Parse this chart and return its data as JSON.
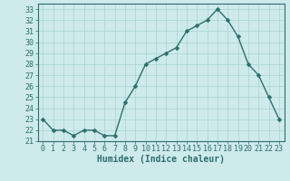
{
  "x": [
    0,
    1,
    2,
    3,
    4,
    5,
    6,
    7,
    8,
    9,
    10,
    11,
    12,
    13,
    14,
    15,
    16,
    17,
    18,
    19,
    20,
    21,
    22,
    23
  ],
  "y": [
    23,
    22,
    22,
    21.5,
    22,
    22,
    21.5,
    21.5,
    24.5,
    26,
    28,
    28.5,
    29,
    29.5,
    31,
    31.5,
    32,
    33,
    32,
    30.5,
    28,
    27,
    25,
    23
  ],
  "line_color": "#2d6e6e",
  "marker_color": "#2d6e6e",
  "bg_color": "#ceeaea",
  "grid_color": "#a8d4d4",
  "xlabel": "Humidex (Indice chaleur)",
  "ylim": [
    21,
    33.5
  ],
  "xlim": [
    -0.5,
    23.5
  ],
  "yticks": [
    21,
    22,
    23,
    24,
    25,
    26,
    27,
    28,
    29,
    30,
    31,
    32,
    33
  ],
  "xtick_labels": [
    "0",
    "1",
    "2",
    "3",
    "4",
    "5",
    "6",
    "7",
    "8",
    "9",
    "10",
    "11",
    "12",
    "13",
    "14",
    "15",
    "16",
    "17",
    "18",
    "19",
    "20",
    "21",
    "22",
    "23"
  ],
  "font_color": "#2d6e6e",
  "marker_size": 2.5,
  "line_width": 1.0,
  "tick_fontsize": 6,
  "xlabel_fontsize": 7
}
